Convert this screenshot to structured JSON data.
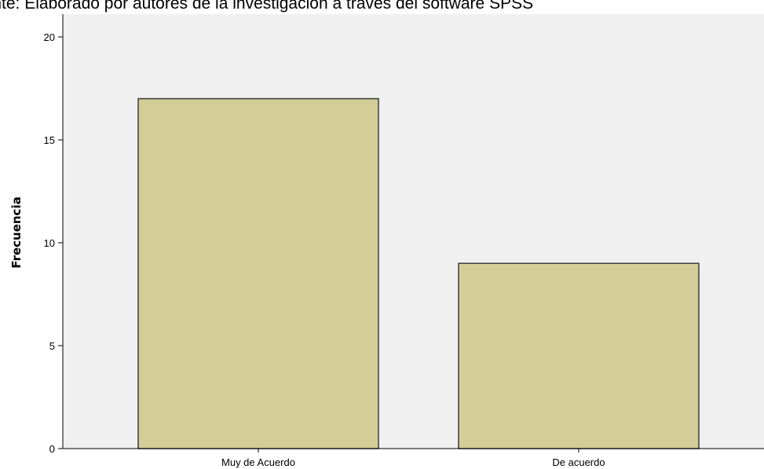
{
  "caption": "uente: Elaborado por autores de la investigación a través del software SPSS",
  "colors": {
    "plot_background": "#f0f0f0",
    "bar_fill": "#d3ce97",
    "bar_stroke": "#3c3c3c",
    "axis": "#000000"
  },
  "chart_data": {
    "type": "bar",
    "title": "",
    "xlabel": "",
    "ylabel": "Frecuencia",
    "categories": [
      "Muy de Acuerdo",
      "De acuerdo"
    ],
    "values": [
      17,
      9
    ],
    "ylim": [
      0,
      20
    ],
    "yticks": [
      0,
      5,
      10,
      15,
      20
    ],
    "grid": false,
    "legend": "none"
  }
}
